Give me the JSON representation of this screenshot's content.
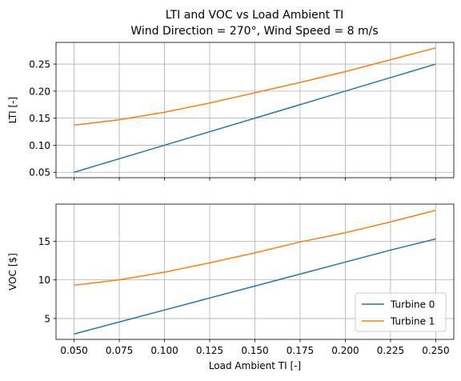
{
  "figure": {
    "title_line1": "LTI and VOC vs Load Ambient TI",
    "title_line2": "Wind Direction = 270°, Wind Speed = 8 m/s"
  },
  "chart_data": [
    {
      "type": "line",
      "ylabel": "LTI [-]",
      "xlabel": "",
      "xlim": [
        0.04,
        0.26
      ],
      "ylim": [
        0.04,
        0.29
      ],
      "x": [
        0.05,
        0.075,
        0.1,
        0.125,
        0.15,
        0.175,
        0.2,
        0.225,
        0.25
      ],
      "xticks": [
        0.05,
        0.075,
        0.1,
        0.125,
        0.15,
        0.175,
        0.2,
        0.225,
        0.25
      ],
      "yticks": [
        0.05,
        0.1,
        0.15,
        0.2,
        0.25
      ],
      "ytick_labels": [
        "0.05",
        "0.10",
        "0.15",
        "0.20",
        "0.25"
      ],
      "grid": true,
      "series": [
        {
          "name": "Turbine 0",
          "color": "#1f77b4",
          "values": [
            0.05,
            0.075,
            0.1,
            0.125,
            0.15,
            0.175,
            0.2,
            0.225,
            0.25
          ]
        },
        {
          "name": "Turbine 1",
          "color": "#ff7f0e",
          "values": [
            0.137,
            0.147,
            0.161,
            0.178,
            0.197,
            0.216,
            0.236,
            0.258,
            0.28
          ]
        }
      ]
    },
    {
      "type": "line",
      "ylabel": "VOC [$]",
      "xlabel": "Load Ambient TI [-]",
      "xlim": [
        0.04,
        0.26
      ],
      "ylim": [
        2.3,
        19.8
      ],
      "x": [
        0.05,
        0.075,
        0.1,
        0.125,
        0.15,
        0.175,
        0.2,
        0.225,
        0.25
      ],
      "xticks": [
        0.05,
        0.075,
        0.1,
        0.125,
        0.15,
        0.175,
        0.2,
        0.225,
        0.25
      ],
      "xtick_labels": [
        "0.050",
        "0.075",
        "0.100",
        "0.125",
        "0.150",
        "0.175",
        "0.200",
        "0.225",
        "0.250"
      ],
      "yticks": [
        5,
        10,
        15
      ],
      "ytick_labels": [
        "5",
        "10",
        "15"
      ],
      "grid": true,
      "legend": "lower-right",
      "series": [
        {
          "name": "Turbine 0",
          "color": "#1f77b4",
          "values": [
            3.0,
            4.55,
            6.1,
            7.65,
            9.2,
            10.75,
            12.3,
            13.85,
            15.3
          ]
        },
        {
          "name": "Turbine 1",
          "color": "#ff7f0e",
          "values": [
            9.3,
            10.0,
            11.0,
            12.2,
            13.5,
            14.9,
            16.1,
            17.5,
            19.0
          ]
        }
      ]
    }
  ]
}
